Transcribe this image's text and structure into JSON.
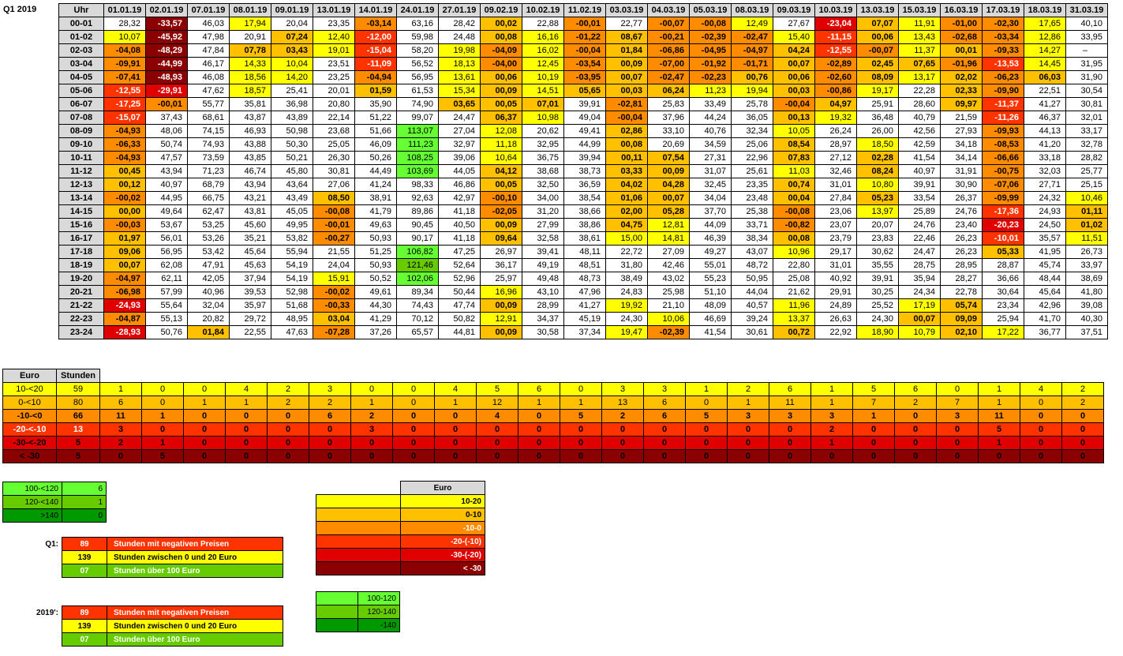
{
  "quarter_label": "Q1 2019",
  "header": {
    "hour_label": "Uhr",
    "dates": [
      "01.01.19",
      "02.01.19",
      "07.01.19",
      "08.01.19",
      "09.01.19",
      "13.01.19",
      "14.01.19",
      "24.01.19",
      "27.01.19",
      "09.02.19",
      "10.02.19",
      "11.02.19",
      "03.03.19",
      "04.03.19",
      "05.03.19",
      "08.03.19",
      "09.03.19",
      "10.03.19",
      "13.03.19",
      "15.03.19",
      "16.03.19",
      "17.03.19",
      "18.03.19",
      "31.03.19"
    ]
  },
  "colors": {
    "yellow": "#ffff00",
    "orange_light": "#ffc000",
    "orange": "#ff8c00",
    "red_orange": "#ff3300",
    "red": "#e00000",
    "dark_red": "#8b0000",
    "green_light": "#66ff33",
    "green": "#66cc00",
    "green_dark": "#009900",
    "header_gray": "#d9d9d9"
  },
  "rows": [
    {
      "hour": "00-01",
      "values": [
        "28,32",
        "-33,57",
        "46,03",
        "17,94",
        "20,04",
        "23,35",
        "-03,14",
        "63,16",
        "28,42",
        "00,02",
        "22,88",
        "-00,01",
        "22,77",
        "-00,07",
        "-00,08",
        "12,49",
        "27,67",
        "-23,04",
        "07,07",
        "11,91",
        "-01,00",
        "-02,30",
        "17,65",
        "40,10"
      ]
    },
    {
      "hour": "01-02",
      "values": [
        "10,07",
        "-45,92",
        "47,98",
        "20,91",
        "07,24",
        "12,40",
        "-12,00",
        "59,98",
        "24,48",
        "00,08",
        "16,16",
        "-01,22",
        "08,67",
        "-00,21",
        "-02,39",
        "-02,47",
        "15,40",
        "-11,15",
        "00,06",
        "13,43",
        "-02,68",
        "-03,34",
        "12,86",
        "33,95"
      ]
    },
    {
      "hour": "02-03",
      "values": [
        "-04,08",
        "-48,29",
        "47,84",
        "07,78",
        "03,43",
        "19,01",
        "-15,04",
        "58,20",
        "19,98",
        "-04,09",
        "16,02",
        "-00,04",
        "01,84",
        "-06,86",
        "-04,95",
        "-04,97",
        "04,24",
        "-12,55",
        "-00,07",
        "11,37",
        "00,01",
        "-09,33",
        "14,27",
        "–"
      ]
    },
    {
      "hour": "03-04",
      "values": [
        "-09,91",
        "-44,99",
        "46,17",
        "14,33",
        "10,04",
        "23,51",
        "-11,09",
        "56,52",
        "18,13",
        "-04,00",
        "12,45",
        "-03,54",
        "00,09",
        "-07,00",
        "-01,92",
        "-01,71",
        "00,07",
        "-02,89",
        "02,45",
        "07,65",
        "-01,96",
        "-13,53",
        "14,45",
        "31,95"
      ]
    },
    {
      "hour": "04-05",
      "values": [
        "-07,41",
        "-48,93",
        "46,08",
        "18,56",
        "14,20",
        "23,25",
        "-04,94",
        "56,95",
        "13,61",
        "00,06",
        "10,19",
        "-03,95",
        "00,07",
        "-02,47",
        "-02,23",
        "00,76",
        "00,06",
        "-02,60",
        "08,09",
        "13,17",
        "02,02",
        "-06,23",
        "06,03",
        "31,90"
      ]
    },
    {
      "hour": "05-06",
      "values": [
        "-12,55",
        "-29,91",
        "47,62",
        "18,57",
        "25,41",
        "20,01",
        "01,59",
        "61,53",
        "15,34",
        "00,09",
        "14,51",
        "05,65",
        "00,03",
        "06,24",
        "11,23",
        "19,94",
        "00,03",
        "-00,86",
        "19,17",
        "22,28",
        "02,33",
        "-09,90",
        "22,51",
        "30,54"
      ]
    },
    {
      "hour": "06-07",
      "values": [
        "-17,25",
        "-00,01",
        "55,77",
        "35,81",
        "36,98",
        "20,80",
        "35,90",
        "74,90",
        "03,65",
        "00,05",
        "07,01",
        "39,91",
        "-02,81",
        "25,83",
        "33,49",
        "25,78",
        "-00,04",
        "04,97",
        "25,91",
        "28,60",
        "09,97",
        "-11,37",
        "41,27",
        "30,81"
      ]
    },
    {
      "hour": "07-08",
      "values": [
        "-15,07",
        "37,43",
        "68,61",
        "43,87",
        "43,89",
        "22,14",
        "51,22",
        "99,07",
        "24,47",
        "06,37",
        "10,98",
        "49,04",
        "-00,04",
        "37,96",
        "44,24",
        "36,05",
        "00,13",
        "19,32",
        "36,48",
        "40,79",
        "21,59",
        "-11,26",
        "46,37",
        "32,01"
      ]
    },
    {
      "hour": "08-09",
      "values": [
        "-04,93",
        "48,06",
        "74,15",
        "46,93",
        "50,98",
        "23,68",
        "51,66",
        "113,07",
        "27,04",
        "12,08",
        "20,62",
        "49,41",
        "02,86",
        "33,10",
        "40,76",
        "32,34",
        "10,05",
        "26,24",
        "26,00",
        "42,56",
        "27,93",
        "-09,93",
        "44,13",
        "33,17"
      ]
    },
    {
      "hour": "09-10",
      "values": [
        "-06,33",
        "50,74",
        "74,93",
        "43,88",
        "50,30",
        "25,05",
        "46,09",
        "111,23",
        "32,97",
        "11,18",
        "32,95",
        "44,99",
        "00,08",
        "20,69",
        "34,59",
        "25,06",
        "08,54",
        "28,97",
        "18,50",
        "42,59",
        "34,18",
        "-08,53",
        "41,20",
        "32,78"
      ]
    },
    {
      "hour": "10-11",
      "values": [
        "-04,93",
        "47,57",
        "73,59",
        "43,85",
        "50,21",
        "26,30",
        "50,26",
        "108,25",
        "39,06",
        "10,64",
        "36,75",
        "39,94",
        "00,11",
        "07,54",
        "27,31",
        "22,96",
        "07,83",
        "27,12",
        "02,28",
        "41,54",
        "34,14",
        "-06,66",
        "33,18",
        "28,82"
      ]
    },
    {
      "hour": "11-12",
      "values": [
        "00,45",
        "43,94",
        "71,23",
        "46,74",
        "45,80",
        "30,81",
        "44,49",
        "103,69",
        "44,05",
        "04,12",
        "38,68",
        "38,73",
        "03,33",
        "00,09",
        "31,07",
        "25,61",
        "11,03",
        "32,46",
        "08,24",
        "40,97",
        "31,91",
        "-00,75",
        "32,03",
        "25,77"
      ]
    },
    {
      "hour": "12-13",
      "values": [
        "00,12",
        "40,97",
        "68,79",
        "43,94",
        "43,64",
        "27,06",
        "41,24",
        "98,33",
        "46,86",
        "00,05",
        "32,50",
        "36,59",
        "04,02",
        "04,28",
        "32,45",
        "23,35",
        "00,74",
        "31,01",
        "10,80",
        "39,91",
        "30,90",
        "-07,06",
        "27,71",
        "25,15"
      ]
    },
    {
      "hour": "13-14",
      "values": [
        "-00,02",
        "44,95",
        "66,75",
        "43,21",
        "43,49",
        "08,50",
        "38,91",
        "92,63",
        "42,97",
        "-00,10",
        "34,00",
        "38,54",
        "01,06",
        "00,07",
        "34,04",
        "23,48",
        "00,04",
        "27,84",
        "05,23",
        "33,54",
        "26,37",
        "-09,99",
        "24,32",
        "10,46"
      ]
    },
    {
      "hour": "14-15",
      "values": [
        "00,00",
        "49,64",
        "62,47",
        "43,81",
        "45,05",
        "-00,08",
        "41,79",
        "89,86",
        "41,18",
        "-02,05",
        "31,20",
        "38,66",
        "02,00",
        "05,28",
        "37,70",
        "25,38",
        "-00,08",
        "23,06",
        "13,97",
        "25,89",
        "24,76",
        "-17,36",
        "24,93",
        "01,11"
      ]
    },
    {
      "hour": "15-16",
      "values": [
        "-00,03",
        "53,67",
        "53,25",
        "45,60",
        "49,95",
        "-00,01",
        "49,63",
        "90,45",
        "40,50",
        "00,09",
        "27,99",
        "38,86",
        "04,75",
        "12,81",
        "44,09",
        "33,71",
        "-00,82",
        "23,07",
        "20,07",
        "24,76",
        "23,40",
        "-20,23",
        "24,50",
        "01,02"
      ]
    },
    {
      "hour": "16-17",
      "values": [
        "01,97",
        "56,01",
        "53,26",
        "35,21",
        "53,82",
        "-00,27",
        "50,93",
        "90,17",
        "41,18",
        "09,64",
        "32,58",
        "38,61",
        "15,00",
        "14,81",
        "46,39",
        "38,34",
        "00,08",
        "23,79",
        "23,83",
        "22,46",
        "26,23",
        "-10,01",
        "35,57",
        "11,51"
      ]
    },
    {
      "hour": "17-18",
      "values": [
        "09,06",
        "56,95",
        "53,42",
        "45,64",
        "55,94",
        "21,55",
        "51,25",
        "106,82",
        "47,25",
        "26,97",
        "39,41",
        "48,11",
        "22,72",
        "27,09",
        "49,27",
        "43,07",
        "10,96",
        "29,17",
        "30,62",
        "24,47",
        "26,23",
        "05,33",
        "41,95",
        "26,73"
      ]
    },
    {
      "hour": "18-19",
      "values": [
        "00,07",
        "62,08",
        "47,91",
        "45,63",
        "54,19",
        "24,04",
        "50,93",
        "121,46",
        "52,64",
        "36,17",
        "49,19",
        "48,51",
        "31,80",
        "42,46",
        "55,01",
        "48,72",
        "22,80",
        "31,01",
        "35,55",
        "28,75",
        "28,95",
        "28,87",
        "45,74",
        "33,97"
      ]
    },
    {
      "hour": "19-20",
      "values": [
        "-04,97",
        "62,11",
        "42,05",
        "37,94",
        "54,19",
        "15,91",
        "50,52",
        "102,06",
        "52,96",
        "25,97",
        "49,48",
        "48,73",
        "38,49",
        "43,02",
        "55,23",
        "50,95",
        "25,08",
        "40,92",
        "39,91",
        "35,94",
        "28,27",
        "36,66",
        "48,44",
        "38,69"
      ]
    },
    {
      "hour": "20-21",
      "values": [
        "-06,98",
        "57,99",
        "40,96",
        "39,53",
        "52,98",
        "-00,02",
        "49,61",
        "89,34",
        "50,44",
        "16,96",
        "43,10",
        "47,96",
        "24,83",
        "25,98",
        "51,10",
        "44,04",
        "21,62",
        "29,91",
        "30,25",
        "24,34",
        "22,78",
        "30,64",
        "45,64",
        "41,80"
      ]
    },
    {
      "hour": "21-22",
      "values": [
        "-24,93",
        "55,64",
        "32,04",
        "35,97",
        "51,68",
        "-00,33",
        "44,30",
        "74,43",
        "47,74",
        "00,09",
        "28,99",
        "41,27",
        "19,92",
        "21,10",
        "48,09",
        "40,57",
        "11,96",
        "24,89",
        "25,52",
        "17,19",
        "05,74",
        "23,34",
        "42,96",
        "39,08"
      ]
    },
    {
      "hour": "22-23",
      "values": [
        "-04,87",
        "55,13",
        "20,82",
        "29,72",
        "48,95",
        "03,04",
        "41,29",
        "70,12",
        "50,82",
        "12,91",
        "34,37",
        "45,19",
        "24,30",
        "10,06",
        "46,69",
        "39,24",
        "13,37",
        "26,63",
        "24,30",
        "00,07",
        "09,09",
        "25,94",
        "41,70",
        "40,30"
      ]
    },
    {
      "hour": "23-24",
      "values": [
        "-28,93",
        "50,76",
        "01,84",
        "22,55",
        "47,63",
        "-07,28",
        "37,26",
        "65,57",
        "44,81",
        "00,09",
        "30,58",
        "37,34",
        "19,47",
        "-02,39",
        "41,54",
        "30,61",
        "00,72",
        "22,92",
        "18,90",
        "10,79",
        "02,10",
        "17,22",
        "36,77",
        "37,51"
      ]
    }
  ],
  "count_table": {
    "headers": [
      "Euro",
      "Stunden"
    ],
    "rows": [
      {
        "label": "10-<20",
        "total": "59",
        "color": "yellow",
        "counts": [
          "1",
          "0",
          "0",
          "4",
          "2",
          "3",
          "0",
          "0",
          "4",
          "5",
          "6",
          "0",
          "3",
          "3",
          "1",
          "2",
          "6",
          "1",
          "5",
          "6",
          "0",
          "1",
          "4",
          "2"
        ]
      },
      {
        "label": "0-<10",
        "total": "80",
        "color": "orange_light",
        "counts": [
          "6",
          "0",
          "1",
          "1",
          "2",
          "2",
          "1",
          "0",
          "1",
          "12",
          "1",
          "1",
          "13",
          "6",
          "0",
          "1",
          "11",
          "1",
          "7",
          "2",
          "7",
          "1",
          "0",
          "2"
        ]
      },
      {
        "label": "-10-<0",
        "total": "66",
        "color": "orange",
        "counts": [
          "11",
          "1",
          "0",
          "0",
          "0",
          "6",
          "2",
          "0",
          "0",
          "4",
          "0",
          "5",
          "2",
          "6",
          "5",
          "3",
          "3",
          "3",
          "1",
          "0",
          "3",
          "11",
          "0",
          "0"
        ]
      },
      {
        "label": "-20-<-10",
        "total": "13",
        "color": "red_orange",
        "counts": [
          "3",
          "0",
          "0",
          "0",
          "0",
          "0",
          "3",
          "0",
          "0",
          "0",
          "0",
          "0",
          "0",
          "0",
          "0",
          "0",
          "0",
          "2",
          "0",
          "0",
          "0",
          "5",
          "0",
          "0"
        ]
      },
      {
        "label": "-30-<-20",
        "total": "5",
        "color": "red",
        "counts": [
          "2",
          "1",
          "0",
          "0",
          "0",
          "0",
          "0",
          "0",
          "0",
          "0",
          "0",
          "0",
          "0",
          "0",
          "0",
          "0",
          "0",
          "1",
          "0",
          "0",
          "0",
          "1",
          "0",
          "0"
        ]
      },
      {
        "label": "< -30",
        "total": "5",
        "color": "dark_red",
        "counts": [
          "0",
          "5",
          "0",
          "0",
          "0",
          "0",
          "0",
          "0",
          "0",
          "0",
          "0",
          "0",
          "0",
          "0",
          "0",
          "0",
          "0",
          "0",
          "0",
          "0",
          "0",
          "0",
          "0",
          "0"
        ]
      }
    ]
  },
  "high_table": [
    {
      "label": "100-<120",
      "value": "6",
      "color": "green_light"
    },
    {
      "label": "120-<140",
      "value": "1",
      "color": "green"
    },
    {
      "label": ">140",
      "value": "0",
      "color": "green_dark"
    }
  ],
  "summary_q1": {
    "label": "Q1:",
    "rows": [
      {
        "value": "89",
        "text": "Stunden mit negativen Preisen",
        "color": "red_orange"
      },
      {
        "value": "139",
        "text": "Stunden zwischen 0 und 20 Euro",
        "color": "yellow"
      },
      {
        "value": "07",
        "text": "Stunden über 100 Euro",
        "color": "green"
      }
    ]
  },
  "summary_year": {
    "label": "2019':",
    "rows": [
      {
        "value": "89",
        "text": "Stunden mit negativen Preisen",
        "color": "red_orange"
      },
      {
        "value": "139",
        "text": "Stunden zwischen 0 und 20 Euro",
        "color": "yellow"
      },
      {
        "value": "07",
        "text": "Stunden über 100 Euro",
        "color": "green"
      }
    ]
  },
  "legend": {
    "header": "Euro",
    "rows": [
      {
        "label": "10-20",
        "color": "yellow"
      },
      {
        "label": "0-10",
        "color": "orange_light"
      },
      {
        "label": "-10-0",
        "color": "orange"
      },
      {
        "label": "-20-(-10)",
        "color": "red_orange"
      },
      {
        "label": "-30-(-20)",
        "color": "red"
      },
      {
        "label": "< -30",
        "color": "dark_red"
      }
    ]
  },
  "legend_high": [
    {
      "label": "100-120",
      "color": "green_light"
    },
    {
      "label": "120-140",
      "color": "green"
    },
    {
      "label": "-140",
      "color": "green_dark"
    }
  ]
}
